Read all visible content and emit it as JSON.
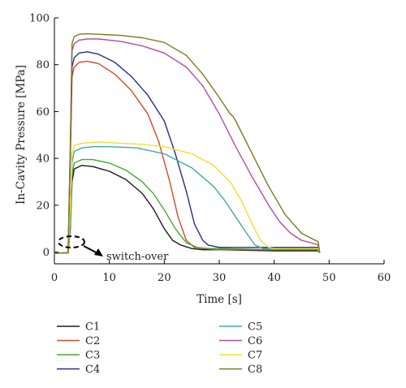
{
  "chart_data": {
    "type": "line",
    "xlabel": "Time [s]",
    "ylabel": "In-Cavity Pressure [MPa]",
    "xlim": [
      0,
      60
    ],
    "ylim": [
      -5,
      100
    ],
    "x_ticks": [
      0,
      10,
      20,
      30,
      40,
      50,
      60
    ],
    "y_ticks": [
      0,
      20,
      40,
      60,
      80,
      100
    ],
    "grid": false,
    "legend_position": "bottom",
    "annotation": {
      "text": "switch-over",
      "x": 3.0,
      "y": 3.5
    },
    "series": [
      {
        "name": "C1",
        "color": "#1a1a1a",
        "x": [
          0,
          2.5,
          2.9,
          3.2,
          3.6,
          5,
          7,
          10,
          13,
          16,
          18,
          20,
          21.5,
          23,
          25,
          27,
          30,
          40,
          48,
          48.3
        ],
        "y": [
          -0.5,
          -0.3,
          10,
          30,
          35.5,
          37,
          36.5,
          34.5,
          31,
          25,
          18.5,
          10,
          5,
          3,
          1.5,
          1,
          1,
          0.5,
          0.5,
          -0.3
        ]
      },
      {
        "name": "C2",
        "color": "#d2482a",
        "x": [
          0,
          2.5,
          2.9,
          3.2,
          3.6,
          4.5,
          6,
          8,
          11,
          14,
          17,
          19,
          21,
          22.5,
          24,
          25.5,
          27,
          30,
          40,
          48,
          48.3
        ],
        "y": [
          -0.5,
          -0.3,
          40,
          75,
          79,
          81,
          81.5,
          80.5,
          76,
          69,
          59,
          47,
          30,
          15,
          5,
          2,
          1.5,
          1,
          1,
          1,
          -0.3
        ]
      },
      {
        "name": "C3",
        "color": "#45a833",
        "x": [
          0,
          2.5,
          2.9,
          3.2,
          3.6,
          5,
          7,
          10,
          13,
          16,
          18,
          20,
          22,
          24,
          26,
          28,
          30,
          40,
          48,
          48.3
        ],
        "y": [
          -0.5,
          -0.3,
          12,
          33,
          38,
          39.5,
          39.5,
          38,
          35,
          30,
          25,
          18,
          10,
          4,
          2,
          1.5,
          1.5,
          1,
          1,
          -0.3
        ]
      },
      {
        "name": "C4",
        "color": "#2a2a8c",
        "x": [
          0,
          2.5,
          2.9,
          3.2,
          3.6,
          4.5,
          6,
          8,
          11,
          14,
          17,
          20,
          22,
          24,
          25.5,
          27,
          28,
          30,
          40,
          48,
          48.3
        ],
        "y": [
          -0.5,
          -0.3,
          42,
          79,
          83,
          85,
          85.5,
          84.5,
          81,
          75,
          67,
          56,
          42,
          26,
          12,
          5,
          3,
          2,
          2,
          2,
          -0.3
        ]
      },
      {
        "name": "C5",
        "color": "#40a8a8",
        "x": [
          0,
          2.5,
          2.9,
          3.2,
          3.6,
          5,
          7,
          10,
          15,
          20,
          25,
          29,
          31,
          33,
          35,
          36.5,
          38,
          40,
          48,
          48.3
        ],
        "y": [
          -0.5,
          -0.3,
          15,
          38,
          43,
          44.5,
          45,
          45,
          44.5,
          42,
          36,
          28,
          22,
          15,
          8,
          3,
          1.5,
          1.5,
          1.5,
          -0.3
        ]
      },
      {
        "name": "C6",
        "color": "#b44c9c",
        "x": [
          0,
          2.5,
          2.9,
          3.2,
          3.6,
          4.5,
          6,
          8,
          12,
          16,
          20,
          24,
          27,
          30,
          33,
          36,
          39,
          41,
          43,
          45,
          47.5,
          48,
          48.3
        ],
        "y": [
          -0.5,
          -0.3,
          45,
          86,
          89,
          90.5,
          91,
          91,
          90,
          88,
          85,
          79,
          71,
          59,
          45,
          32,
          20,
          13,
          8,
          5,
          3.5,
          3,
          -0.3
        ]
      },
      {
        "name": "C7",
        "color": "#f0e030",
        "x": [
          0,
          2.5,
          2.9,
          3.2,
          3.6,
          5,
          8,
          12,
          16,
          20,
          25,
          29,
          32,
          34,
          36,
          37.5,
          39,
          40,
          48,
          48.3
        ],
        "y": [
          -0.5,
          -0.3,
          18,
          42,
          45.5,
          46.5,
          47,
          46.5,
          46,
          45,
          42,
          37,
          30,
          22,
          12,
          5,
          2,
          1.5,
          1.5,
          -0.3
        ]
      },
      {
        "name": "C8",
        "color": "#7a7a1e",
        "x": [
          0,
          2.5,
          2.9,
          3.2,
          3.6,
          4.5,
          6,
          8,
          12,
          16,
          20,
          24,
          27,
          30,
          32,
          32.5,
          33,
          36,
          39,
          42,
          45,
          47.5,
          48,
          48.3
        ],
        "y": [
          -0.5,
          -0.3,
          45,
          89,
          92,
          93,
          93.2,
          93,
          92.5,
          91.5,
          89.5,
          84,
          76,
          66,
          59,
          58,
          56,
          42,
          28,
          16,
          8,
          5,
          4.5,
          -0.3
        ]
      }
    ]
  }
}
